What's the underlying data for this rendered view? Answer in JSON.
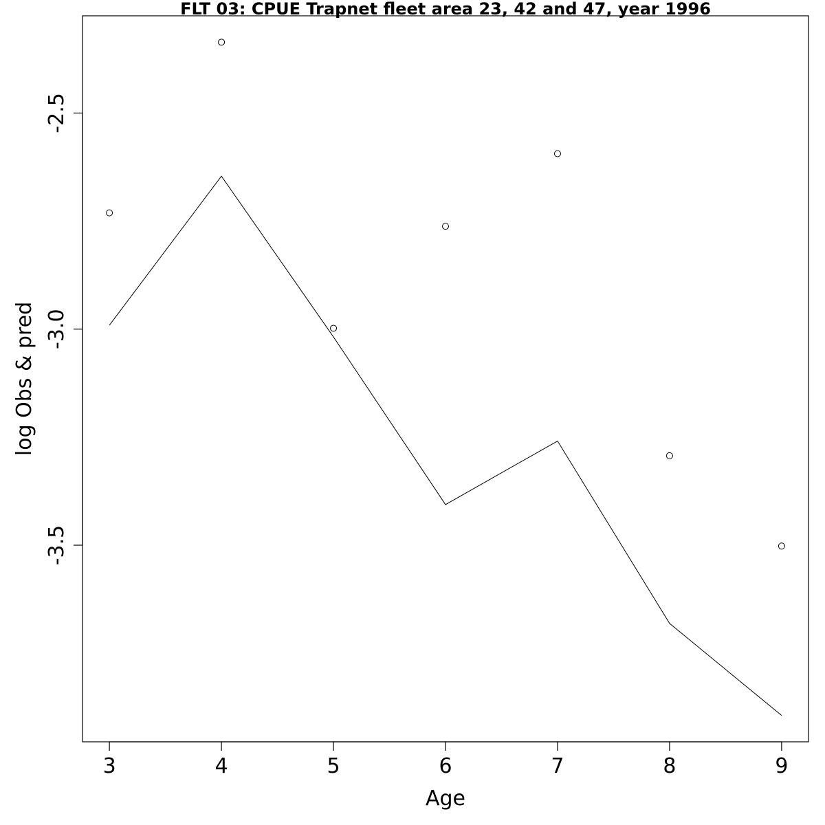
{
  "chart_data": {
    "type": "line",
    "title": "FLT 03: CPUE Trapnet fleet area 23, 42 and 47, year 1996",
    "xlabel": "Age",
    "ylabel": "log Obs & pred",
    "x": [
      3,
      4,
      5,
      6,
      7,
      8,
      9
    ],
    "x_tick_labels": [
      "3",
      "4",
      "5",
      "6",
      "7",
      "8",
      "9"
    ],
    "y_ticks": [
      -2.5,
      -3.0,
      -3.5
    ],
    "y_tick_labels": [
      "-2.5",
      "-3.0",
      "-3.5"
    ],
    "xlim": [
      2.76,
      9.24
    ],
    "ylim": [
      -3.955,
      -2.275
    ],
    "grid": false,
    "legend": "none",
    "series": [
      {
        "style": "points",
        "marker": "open-circle",
        "values": [
          -2.731,
          -2.336,
          -2.998,
          -2.762,
          -2.594,
          -3.293,
          -3.502
        ]
      },
      {
        "style": "line",
        "values": [
          -2.991,
          -2.646,
          -3.018,
          -3.406,
          -3.259,
          -3.681,
          -3.894
        ]
      }
    ]
  }
}
